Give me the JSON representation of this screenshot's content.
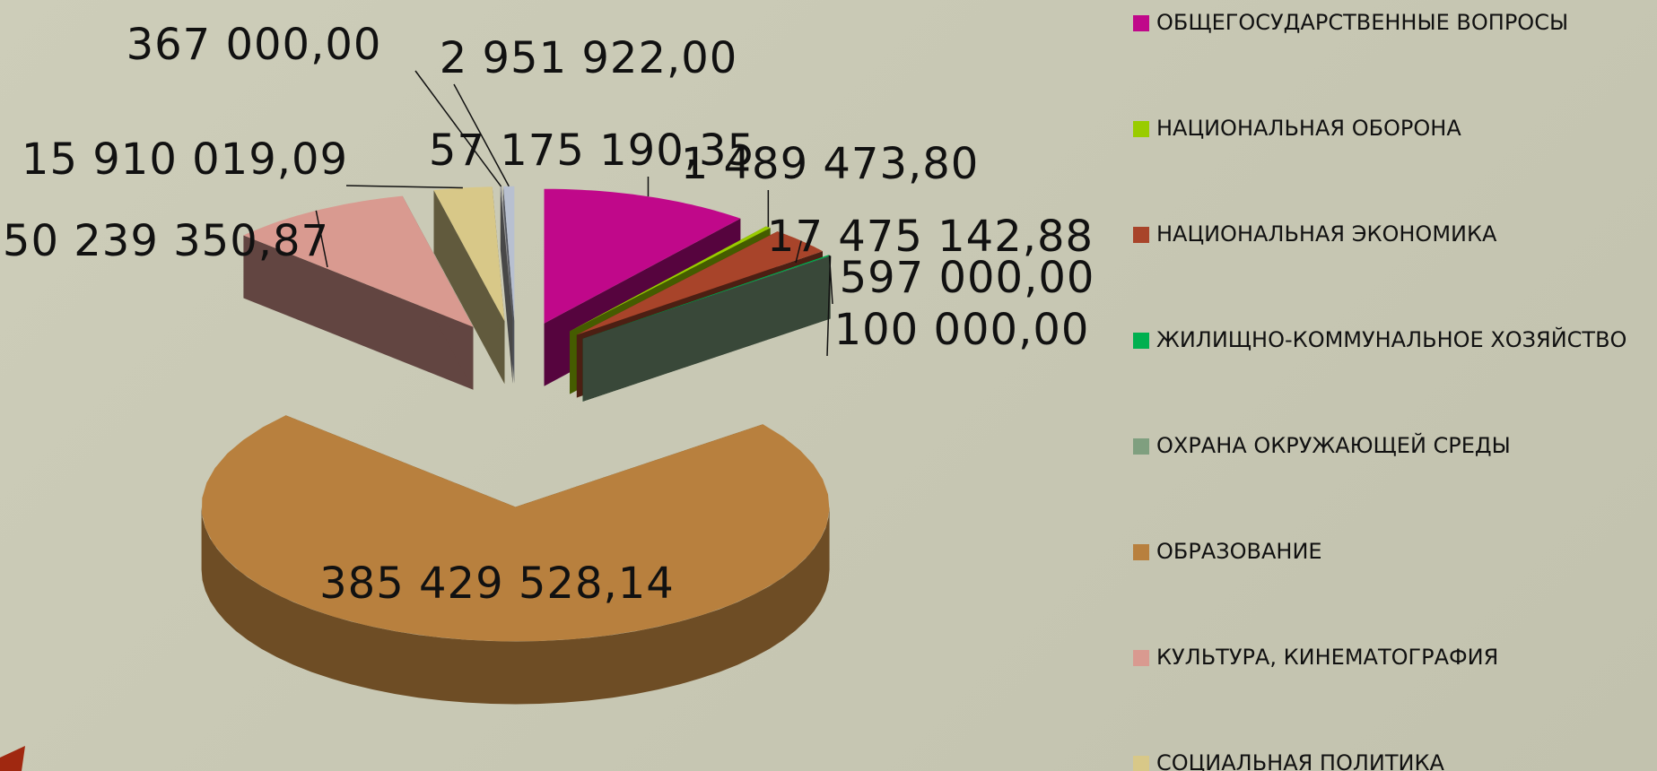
{
  "chart_data": {
    "type": "pie3d",
    "categories": [
      "ОБЩЕГОСУДАРСТВЕННЫЕ ВОПРОСЫ",
      "НАЦИОНАЛЬНАЯ ОБОРОНА",
      "НАЦИОНАЛЬНАЯ ЭКОНОМИКА",
      "ЖИЛИЩНО-КОММУНАЛЬНОЕ ХОЗЯЙСТВО",
      "ОХРАНА ОКРУЖАЮЩЕЙ СРЕДЫ",
      "ОБРАЗОВАНИЕ",
      "КУЛЬТУРА, КИНЕМАТОГРАФИЯ",
      "СОЦИАЛЬНАЯ  ПОЛИТИКА",
      null,
      null
    ],
    "values": [
      57175190.35,
      1489473.8,
      17475142.88,
      597000.0,
      100000.0,
      385429528.14,
      50239350.87,
      15910019.09,
      367000.0,
      2951922.0
    ],
    "value_labels": [
      "57 175 190,35",
      "1 489 473,80",
      "17 475 142,88",
      "597 000,00",
      "100 000,00",
      "385 429 528,14",
      "50 239 350,87",
      "15 910 019,09",
      "367 000,00",
      "2 951 922,00"
    ],
    "colors": [
      "#c0088a",
      "#99cc00",
      "#a8442a",
      "#00b050",
      "#7f9f7f",
      "#b8803e",
      "#d99a90",
      "#d8c888",
      "#a0a0a0",
      "#b8c0d0"
    ],
    "legend": "right"
  }
}
